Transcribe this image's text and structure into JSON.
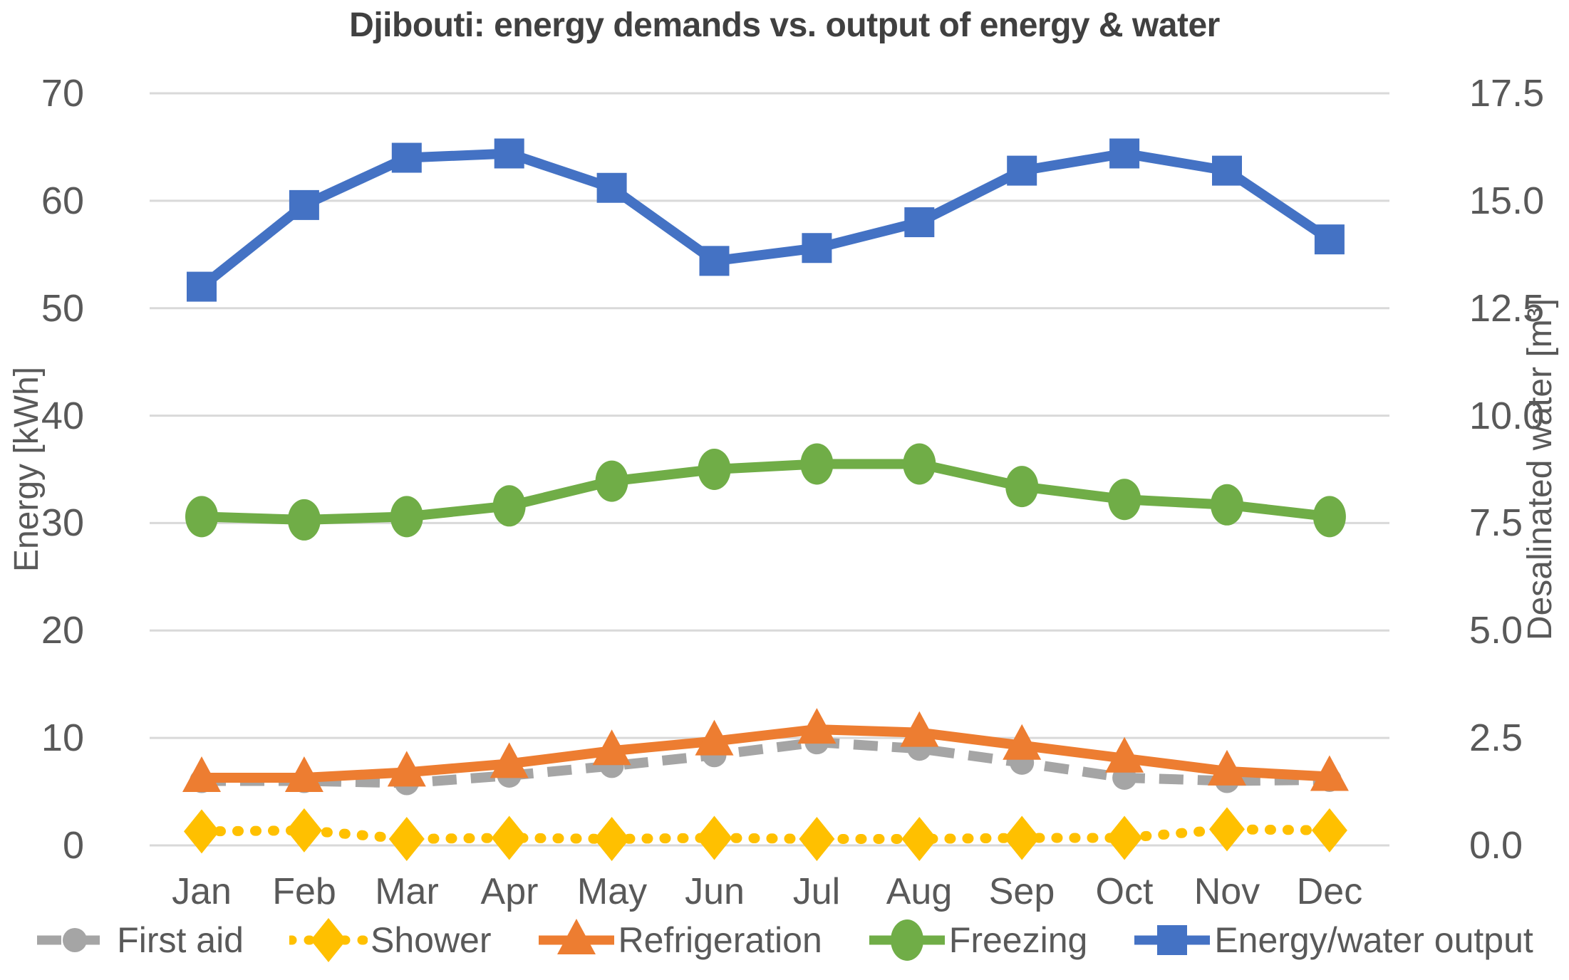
{
  "title": "Djibouti: energy demands vs. output of energy & water",
  "colors": {
    "gridline": "#D9D9D9",
    "text": "#595959",
    "title_text": "#404040",
    "first_aid": "#A5A5A5",
    "shower": "#FFC000",
    "refrigeration": "#ED7D31",
    "freezing": "#70AD47",
    "energy_water_output": "#4472C4"
  },
  "chart_data": {
    "type": "line",
    "title": "Djibouti: energy demands vs. output of energy & water",
    "categories": [
      "Jan",
      "Feb",
      "Mar",
      "Apr",
      "May",
      "Jun",
      "Jul",
      "Aug",
      "Sep",
      "Oct",
      "Nov",
      "Dec"
    ],
    "grid": true,
    "legend_position": "bottom",
    "y_left": {
      "label": "Energy [kWh]",
      "min": 0,
      "max": 70,
      "ticks": [
        "70",
        "60",
        "50",
        "40",
        "30",
        "20",
        "10",
        "0"
      ]
    },
    "y_right": {
      "label": "Desalinated water [m³]",
      "min": 0,
      "max": 17.5,
      "ticks": [
        "17.5",
        "15.0",
        "12.5",
        "10.0",
        "7.5",
        "5.0",
        "2.5",
        "0.0"
      ]
    },
    "series": [
      {
        "name": "First aid",
        "axis": "left",
        "units": "kWh",
        "color": "#A5A5A5",
        "marker": "circle",
        "line": "dashed",
        "values": [
          6.0,
          6.0,
          5.8,
          6.5,
          7.4,
          8.4,
          9.6,
          9.0,
          7.7,
          6.3,
          6.0,
          6.1
        ]
      },
      {
        "name": "Shower",
        "axis": "left",
        "units": "kWh",
        "color": "#FFC000",
        "marker": "diamond",
        "line": "dotted",
        "values": [
          1.3,
          1.4,
          0.6,
          0.7,
          0.6,
          0.7,
          0.6,
          0.6,
          0.7,
          0.7,
          1.5,
          1.4
        ]
      },
      {
        "name": "Refrigeration",
        "axis": "left",
        "units": "kWh",
        "color": "#ED7D31",
        "marker": "triangle",
        "line": "solid",
        "values": [
          6.3,
          6.3,
          6.8,
          7.6,
          8.8,
          9.7,
          10.8,
          10.5,
          9.3,
          8.1,
          6.9,
          6.4
        ]
      },
      {
        "name": "Freezing",
        "axis": "left",
        "units": "kWh",
        "color": "#70AD47",
        "marker": "ellipse",
        "line": "solid",
        "values": [
          30.6,
          30.3,
          30.6,
          31.6,
          33.9,
          35.0,
          35.5,
          35.5,
          33.4,
          32.2,
          31.7,
          30.6
        ]
      },
      {
        "name": "Energy/water output",
        "axis": "right",
        "units": "m³",
        "color": "#4472C4",
        "marker": "square",
        "line": "solid",
        "values": [
          13.0,
          14.9,
          16.0,
          16.1,
          15.3,
          13.6,
          13.9,
          14.5,
          15.7,
          16.1,
          15.7,
          14.1
        ]
      }
    ]
  }
}
